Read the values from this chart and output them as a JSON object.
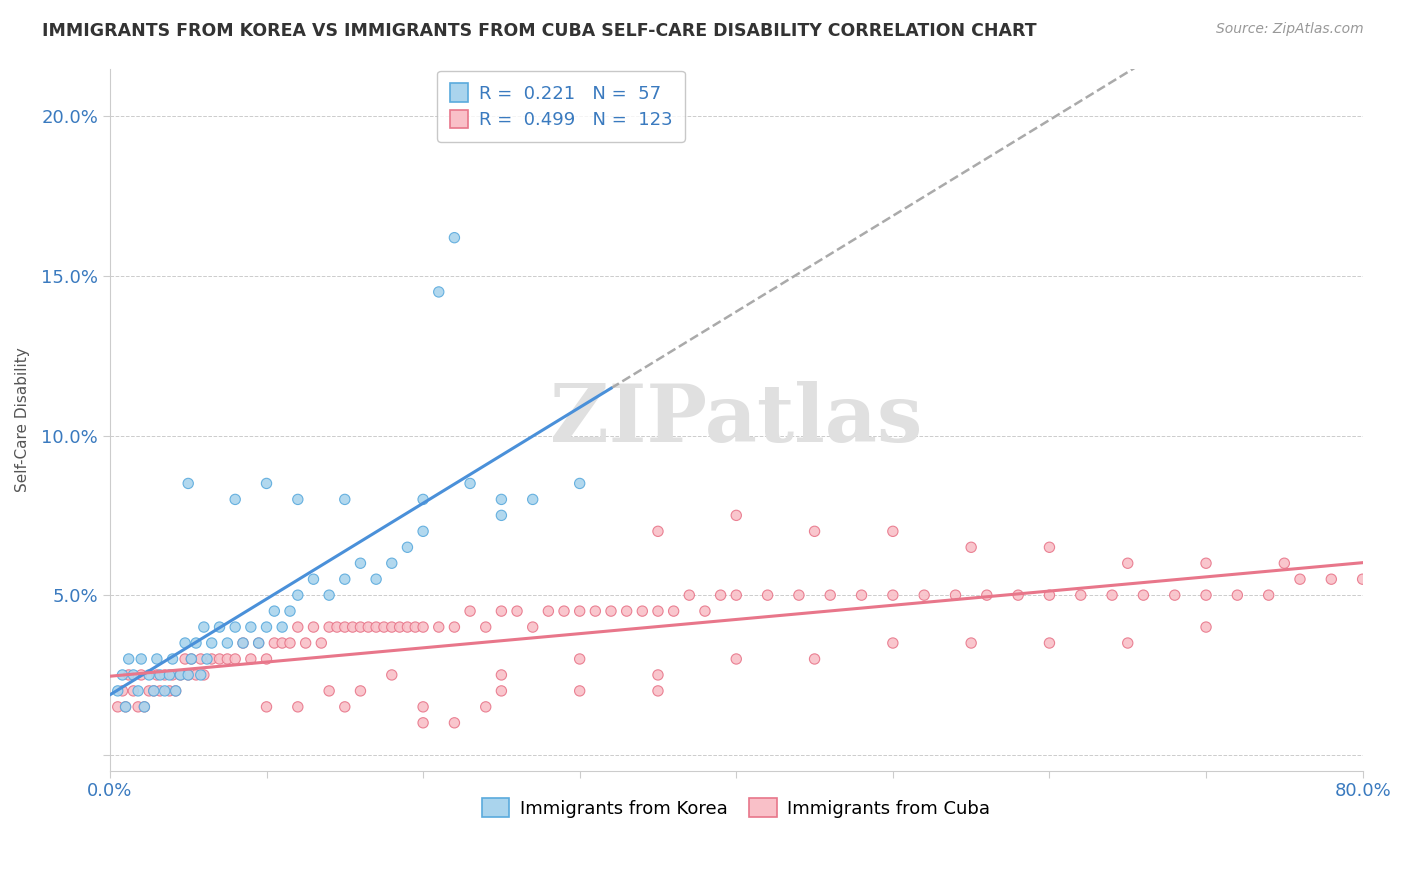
{
  "title": "IMMIGRANTS FROM KOREA VS IMMIGRANTS FROM CUBA SELF-CARE DISABILITY CORRELATION CHART",
  "source": "Source: ZipAtlas.com",
  "ylabel": "Self-Care Disability",
  "xlim": [
    0.0,
    0.8
  ],
  "ylim": [
    -0.005,
    0.215
  ],
  "xticks": [
    0.0,
    0.1,
    0.2,
    0.3,
    0.4,
    0.5,
    0.6,
    0.7,
    0.8
  ],
  "xticklabels": [
    "0.0%",
    "",
    "",
    "",
    "",
    "",
    "",
    "",
    "80.0%"
  ],
  "yticks": [
    0.0,
    0.05,
    0.1,
    0.15,
    0.2
  ],
  "yticklabels": [
    "",
    "5.0%",
    "10.0%",
    "15.0%",
    "20.0%"
  ],
  "korea_R": 0.221,
  "korea_N": 57,
  "cuba_R": 0.499,
  "cuba_N": 123,
  "korea_face_color": "#aad4ed",
  "cuba_face_color": "#f9c0c8",
  "korea_edge_color": "#5aaadd",
  "cuba_edge_color": "#e8768a",
  "korea_line_color": "#4a90d9",
  "cuba_line_color": "#e8768a",
  "dashed_line_color": "#aaaaaa",
  "watermark": "ZIPatlas",
  "legend_label_korea": "Immigrants from Korea",
  "legend_label_cuba": "Immigrants from Cuba",
  "korea_scatter_x": [
    0.005,
    0.008,
    0.01,
    0.012,
    0.015,
    0.018,
    0.02,
    0.022,
    0.025,
    0.028,
    0.03,
    0.032,
    0.035,
    0.038,
    0.04,
    0.042,
    0.045,
    0.048,
    0.05,
    0.052,
    0.055,
    0.058,
    0.06,
    0.062,
    0.065,
    0.07,
    0.075,
    0.08,
    0.085,
    0.09,
    0.095,
    0.1,
    0.105,
    0.11,
    0.115,
    0.12,
    0.13,
    0.14,
    0.15,
    0.16,
    0.17,
    0.18,
    0.19,
    0.2,
    0.21,
    0.22,
    0.23,
    0.25,
    0.27,
    0.3,
    0.15,
    0.2,
    0.25,
    0.1,
    0.05,
    0.08,
    0.12
  ],
  "korea_scatter_y": [
    0.02,
    0.025,
    0.015,
    0.03,
    0.025,
    0.02,
    0.03,
    0.015,
    0.025,
    0.02,
    0.03,
    0.025,
    0.02,
    0.025,
    0.03,
    0.02,
    0.025,
    0.035,
    0.025,
    0.03,
    0.035,
    0.025,
    0.04,
    0.03,
    0.035,
    0.04,
    0.035,
    0.04,
    0.035,
    0.04,
    0.035,
    0.04,
    0.045,
    0.04,
    0.045,
    0.05,
    0.055,
    0.05,
    0.055,
    0.06,
    0.055,
    0.06,
    0.065,
    0.07,
    0.145,
    0.162,
    0.085,
    0.08,
    0.08,
    0.085,
    0.08,
    0.08,
    0.075,
    0.085,
    0.085,
    0.08,
    0.08
  ],
  "cuba_scatter_x": [
    0.005,
    0.008,
    0.01,
    0.012,
    0.015,
    0.018,
    0.02,
    0.022,
    0.025,
    0.028,
    0.03,
    0.032,
    0.035,
    0.038,
    0.04,
    0.042,
    0.045,
    0.048,
    0.05,
    0.052,
    0.055,
    0.058,
    0.06,
    0.065,
    0.07,
    0.075,
    0.08,
    0.085,
    0.09,
    0.095,
    0.1,
    0.105,
    0.11,
    0.115,
    0.12,
    0.125,
    0.13,
    0.135,
    0.14,
    0.145,
    0.15,
    0.155,
    0.16,
    0.165,
    0.17,
    0.175,
    0.18,
    0.185,
    0.19,
    0.195,
    0.2,
    0.21,
    0.22,
    0.23,
    0.24,
    0.25,
    0.26,
    0.27,
    0.28,
    0.29,
    0.3,
    0.31,
    0.32,
    0.33,
    0.34,
    0.35,
    0.36,
    0.37,
    0.38,
    0.39,
    0.4,
    0.42,
    0.44,
    0.46,
    0.48,
    0.5,
    0.52,
    0.54,
    0.56,
    0.58,
    0.6,
    0.62,
    0.64,
    0.66,
    0.68,
    0.7,
    0.72,
    0.74,
    0.76,
    0.78,
    0.35,
    0.4,
    0.45,
    0.5,
    0.55,
    0.6,
    0.65,
    0.7,
    0.75,
    0.8,
    0.25,
    0.3,
    0.35,
    0.4,
    0.45,
    0.5,
    0.55,
    0.6,
    0.65,
    0.7,
    0.15,
    0.2,
    0.25,
    0.3,
    0.35,
    0.1,
    0.12,
    0.14,
    0.16,
    0.18,
    0.2,
    0.22,
    0.24
  ],
  "cuba_scatter_y": [
    0.015,
    0.02,
    0.015,
    0.025,
    0.02,
    0.015,
    0.025,
    0.015,
    0.02,
    0.02,
    0.025,
    0.02,
    0.025,
    0.02,
    0.025,
    0.02,
    0.025,
    0.03,
    0.025,
    0.03,
    0.025,
    0.03,
    0.025,
    0.03,
    0.03,
    0.03,
    0.03,
    0.035,
    0.03,
    0.035,
    0.03,
    0.035,
    0.035,
    0.035,
    0.04,
    0.035,
    0.04,
    0.035,
    0.04,
    0.04,
    0.04,
    0.04,
    0.04,
    0.04,
    0.04,
    0.04,
    0.04,
    0.04,
    0.04,
    0.04,
    0.04,
    0.04,
    0.04,
    0.045,
    0.04,
    0.045,
    0.045,
    0.04,
    0.045,
    0.045,
    0.045,
    0.045,
    0.045,
    0.045,
    0.045,
    0.045,
    0.045,
    0.05,
    0.045,
    0.05,
    0.05,
    0.05,
    0.05,
    0.05,
    0.05,
    0.05,
    0.05,
    0.05,
    0.05,
    0.05,
    0.05,
    0.05,
    0.05,
    0.05,
    0.05,
    0.05,
    0.05,
    0.05,
    0.055,
    0.055,
    0.07,
    0.075,
    0.07,
    0.07,
    0.065,
    0.065,
    0.06,
    0.06,
    0.06,
    0.055,
    0.025,
    0.03,
    0.025,
    0.03,
    0.03,
    0.035,
    0.035,
    0.035,
    0.035,
    0.04,
    0.015,
    0.015,
    0.02,
    0.02,
    0.02,
    0.015,
    0.015,
    0.02,
    0.02,
    0.025,
    0.01,
    0.01,
    0.015
  ]
}
